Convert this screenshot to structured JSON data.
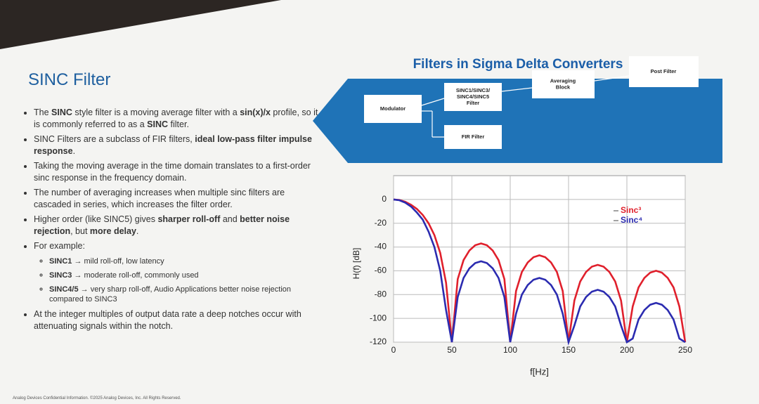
{
  "slide": {
    "title": "SINC Filter",
    "bullets": [
      {
        "runs": [
          {
            "t": "The "
          },
          {
            "t": "SINC",
            "b": true
          },
          {
            "t": " style filter is a moving average filter with a "
          },
          {
            "t": "sin(x)/x",
            "b": true
          },
          {
            "t": " profile, so it is commonly referred to as a "
          },
          {
            "t": "SINC",
            "b": true
          },
          {
            "t": " filter."
          }
        ]
      },
      {
        "runs": [
          {
            "t": "SINC Filters are a subclass of FIR filters, "
          },
          {
            "t": "ideal low-pass filter impulse response",
            "b": true
          },
          {
            "t": "."
          }
        ]
      },
      {
        "runs": [
          {
            "t": "Taking the moving average in the time domain translates to a first-order sinc response in the frequency domain."
          }
        ]
      },
      {
        "runs": [
          {
            "t": "The number of averaging increases when multiple sinc filters are cascaded in series, which increases the filter order."
          }
        ]
      },
      {
        "runs": [
          {
            "t": "Higher order (like SINC5) gives "
          },
          {
            "t": "sharper roll-off",
            "b": true
          },
          {
            "t": " and "
          },
          {
            "t": "better noise rejection",
            "b": true
          },
          {
            "t": ", but "
          },
          {
            "t": "more delay",
            "b": true
          },
          {
            "t": "."
          }
        ]
      },
      {
        "runs": [
          {
            "t": "For example:"
          }
        ],
        "sub": [
          {
            "runs": [
              {
                "t": "SINC1",
                "b": true
              },
              {
                "t": " → mild roll-off, low latency"
              }
            ]
          },
          {
            "runs": [
              {
                "t": "SINC3",
                "b": true
              },
              {
                "t": " → moderate roll-off, commonly used"
              }
            ]
          },
          {
            "runs": [
              {
                "t": "SINC4/5",
                "b": true
              },
              {
                "t": " → very sharp roll-off, Audio Applications better noise rejection compared to SINC3"
              }
            ]
          }
        ]
      },
      {
        "runs": [
          {
            "t": "At the integer multiples of output data rate a deep notches occur with attenuating signals within the notch."
          }
        ]
      }
    ],
    "footer": "Analog Devices Confidential Information. ©2025 Analog Devices, Inc. All Rights Reserved."
  },
  "diagram": {
    "title": "Filters in Sigma Delta Converters",
    "nodes": [
      {
        "label": "Modulator"
      },
      {
        "label": "SINC1/SINC3/ SINC4/SINC5 Filter"
      },
      {
        "label": "Averaging Block"
      },
      {
        "label": "Post Filter"
      },
      {
        "label": "FIR Filter"
      }
    ]
  },
  "chart_data": {
    "type": "line",
    "x_label": "f[Hz]",
    "y_label": "H(f) [dB]",
    "x": [
      0,
      5,
      10,
      15,
      20,
      25,
      30,
      35,
      40,
      45,
      50,
      55,
      60,
      65,
      70,
      75,
      80,
      85,
      90,
      95,
      100,
      105,
      110,
      115,
      120,
      125,
      130,
      135,
      140,
      145,
      150,
      155,
      160,
      165,
      170,
      175,
      180,
      185,
      190,
      195,
      200,
      205,
      210,
      215,
      220,
      225,
      230,
      235,
      240,
      245,
      250
    ],
    "xlim": [
      0,
      250
    ],
    "xticks": [
      0,
      50,
      100,
      150,
      200,
      250
    ],
    "ylim": [
      -120,
      20
    ],
    "yticks": [
      -120,
      -100,
      -80,
      -60,
      -40,
      -20,
      0
    ],
    "grid": true,
    "series": [
      {
        "name": "Sinc³",
        "color": "#e0202c",
        "values": [
          0,
          -0.5,
          -2,
          -4.5,
          -8,
          -13,
          -20,
          -30,
          -45,
          -70,
          -120,
          -67,
          -51,
          -43,
          -38.5,
          -37,
          -38.5,
          -43,
          -51,
          -67,
          -120,
          -77,
          -61,
          -53,
          -48.5,
          -47,
          -48.5,
          -53,
          -61,
          -77,
          -120,
          -85,
          -69,
          -61,
          -56.5,
          -55,
          -56.5,
          -61,
          -69,
          -85,
          -120,
          -90,
          -74,
          -66,
          -61.5,
          -60,
          -61.5,
          -66,
          -74,
          -90,
          -120
        ]
      },
      {
        "name": "Sinc⁴",
        "color": "#2b2bb0",
        "values": [
          0,
          -0.7,
          -2.7,
          -6,
          -11,
          -17,
          -27,
          -40,
          -60,
          -93,
          -120,
          -82,
          -66,
          -58,
          -53.5,
          -52,
          -53.5,
          -58,
          -66,
          -82,
          -120,
          -96,
          -80,
          -72,
          -67.5,
          -66,
          -67.5,
          -72,
          -80,
          -96,
          -120,
          -106,
          -90,
          -82,
          -77.5,
          -76,
          -77.5,
          -82,
          -90,
          -106,
          -120,
          -117,
          -101,
          -93,
          -88.5,
          -87,
          -88.5,
          -93,
          -101,
          -117,
          -120
        ]
      }
    ]
  }
}
